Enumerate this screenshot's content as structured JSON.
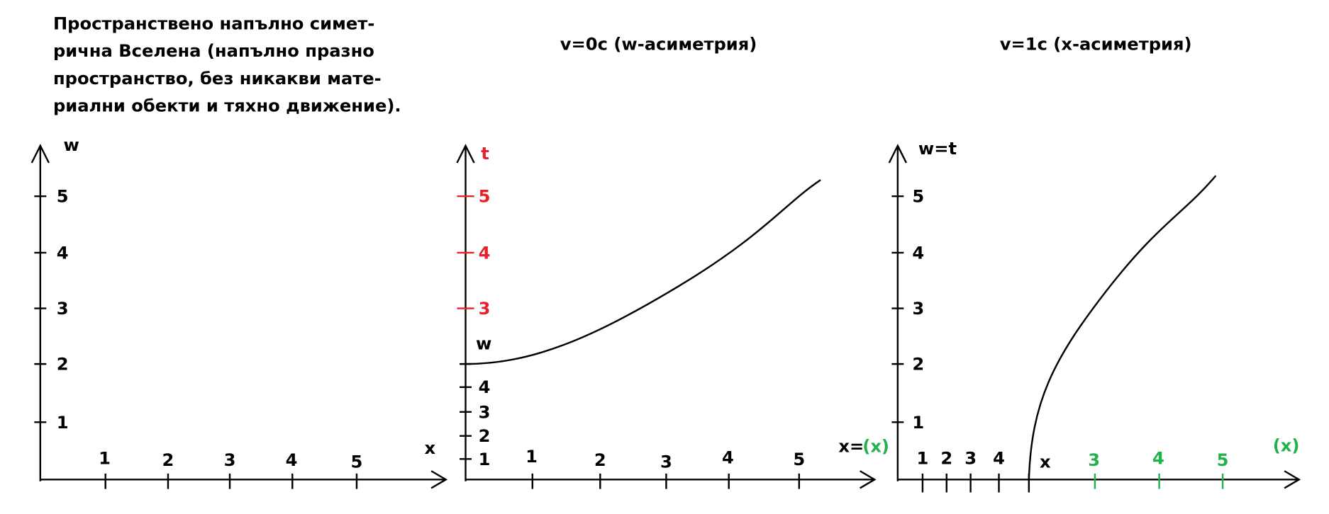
{
  "caption": [
    "Пространствено напълно симет-",
    "рична Вселена (напълно празно",
    "пространство, без никакви мате-",
    "риални обекти и тяхно движение)."
  ],
  "panels": [
    {
      "y_label": "w",
      "x_label": "x",
      "y_ticks": [
        "1",
        "2",
        "3",
        "4",
        "5"
      ],
      "x_ticks": [
        "1",
        "2",
        "3",
        "4",
        "5"
      ]
    },
    {
      "title": "v=0c (w-асиметрия)",
      "y_label": "t",
      "y_ticks_t": [
        "3",
        "4",
        "5"
      ],
      "curve_label": "w",
      "y_ticks_w": [
        "1",
        "2",
        "3",
        "4"
      ],
      "x_label": "x=",
      "x_label_green": "(x)",
      "x_ticks": [
        "1",
        "2",
        "3",
        "4",
        "5"
      ]
    },
    {
      "title": "v=1c (x-асиметрия)",
      "y_label": "w=t",
      "y_ticks": [
        "1",
        "2",
        "3",
        "4",
        "5"
      ],
      "x_ticks": [
        "1",
        "2",
        "3",
        "4"
      ],
      "curve_label": "x",
      "x_ticks_green": [
        "3",
        "4",
        "5"
      ],
      "x_label_green": "(x)"
    }
  ]
}
